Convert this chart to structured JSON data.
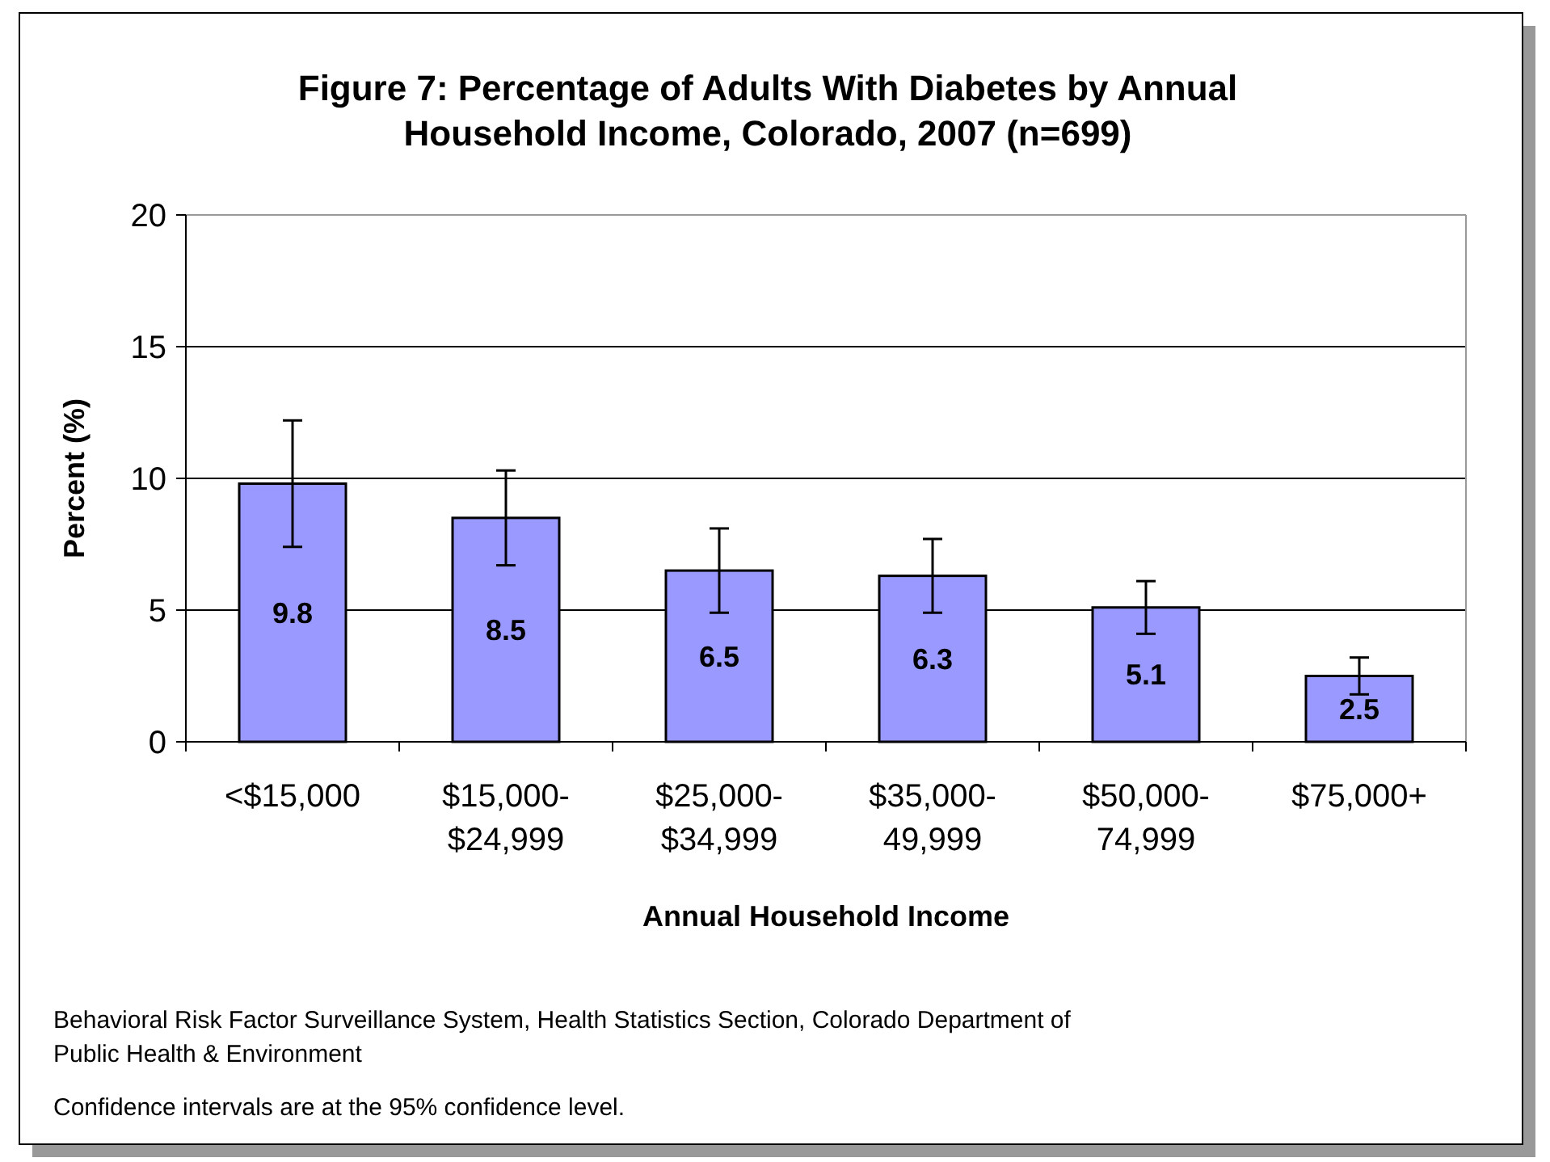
{
  "chart_data": {
    "type": "bar",
    "title": "Figure 7: Percentage of Adults With Diabetes by Annual Household Income, Colorado, 2007 (n=699)",
    "xlabel": "Annual Household Income",
    "ylabel": "Percent (%)",
    "categories": [
      "<$15,000",
      "$15,000-\n$24,999",
      "$25,000-\n$34,999",
      "$35,000-\n49,999",
      "$50,000-\n74,999",
      "$75,000+"
    ],
    "values": [
      9.8,
      8.5,
      6.5,
      6.3,
      5.1,
      2.5
    ],
    "errors": [
      [
        7.4,
        12.2
      ],
      [
        6.7,
        10.3
      ],
      [
        4.9,
        8.1
      ],
      [
        4.9,
        7.7
      ],
      [
        4.1,
        6.1
      ],
      [
        1.8,
        3.2
      ]
    ],
    "color": "#9999ff",
    "ylim": [
      0,
      20
    ],
    "yticks": [
      0,
      5,
      10,
      15,
      20
    ],
    "grid": "y",
    "data_labels": true,
    "annotations": [
      "Behavioral Risk Factor Surveillance System, Health Statistics Section, Colorado Department of\nPublic Health & Environment",
      "Confidence intervals are at the 95% confidence level."
    ]
  }
}
